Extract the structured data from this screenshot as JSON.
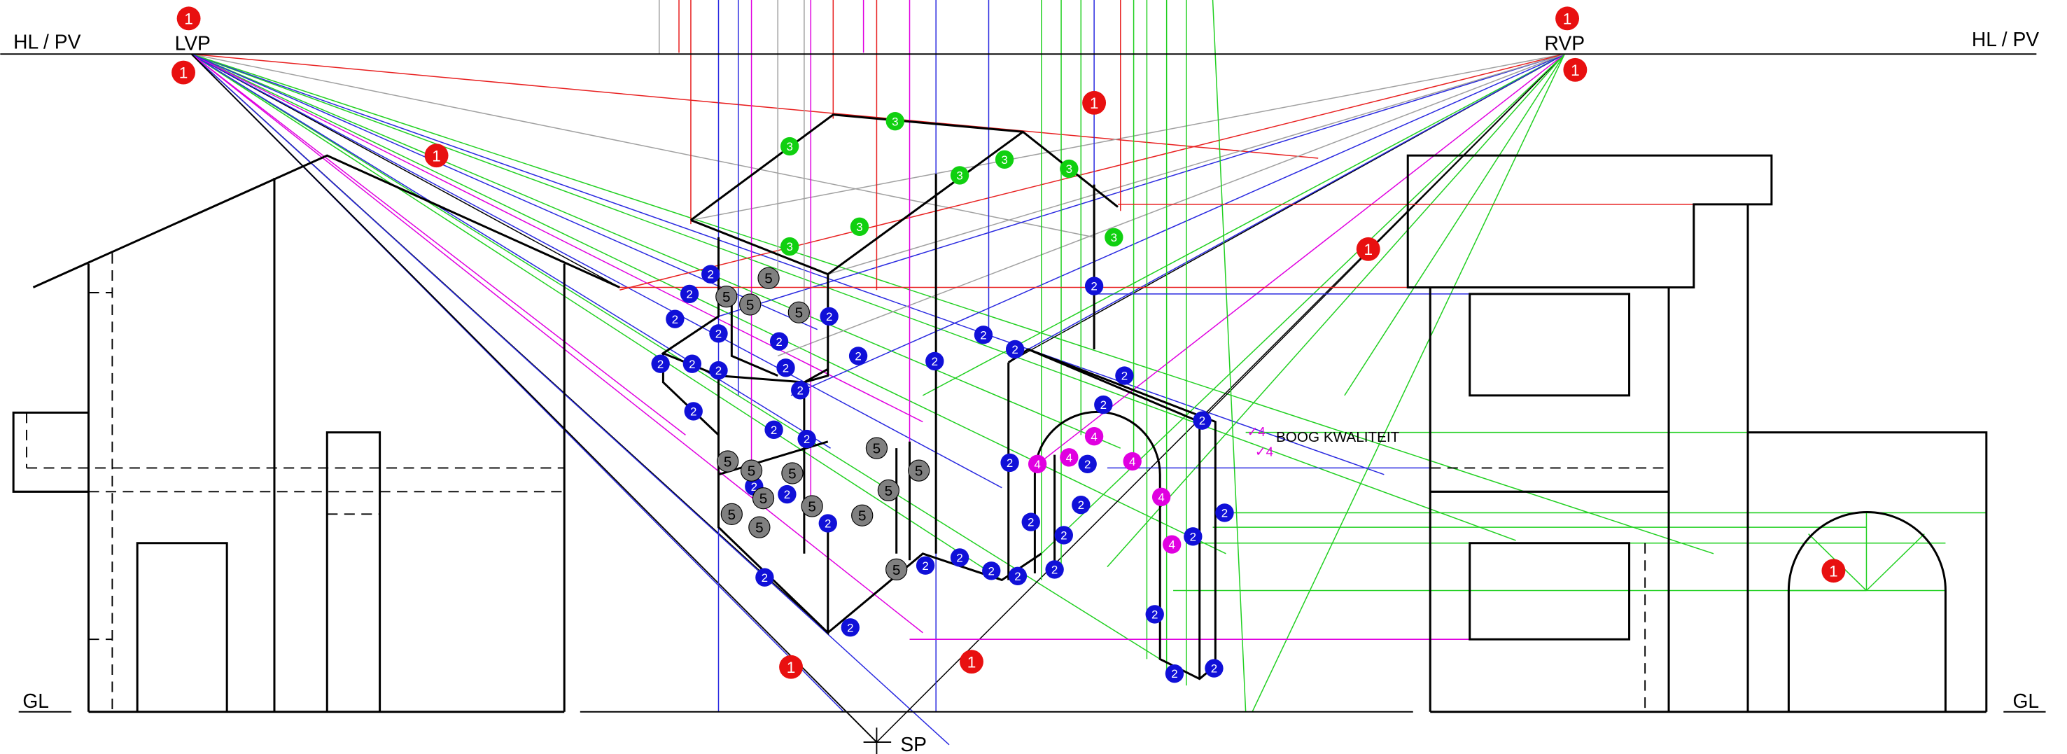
{
  "labels": {
    "hl_left": "HL / PV",
    "hl_right": "HL / PV",
    "lvp": "LVP",
    "rvp": "RVP",
    "gl_left": "GL",
    "gl_right": "GL",
    "sp": "SP",
    "note": "BOOG KWALITEIT",
    "check_1": "✓4",
    "check_2": "✓4"
  },
  "markers": {
    "red": [
      "1",
      "1",
      "1",
      "1",
      "1",
      "1",
      "1",
      "1",
      "1",
      "1"
    ],
    "green": [
      "3",
      "3",
      "3",
      "3",
      "3",
      "3",
      "3",
      "3"
    ],
    "blue": [
      "2",
      "2",
      "2",
      "2",
      "2",
      "2",
      "2",
      "2",
      "2",
      "2",
      "2",
      "2",
      "2",
      "2",
      "2",
      "2",
      "2",
      "2",
      "2",
      "2",
      "2",
      "2",
      "2",
      "2",
      "2",
      "2",
      "2",
      "2",
      "2",
      "2",
      "2",
      "2",
      "2",
      "2",
      "2",
      "2",
      "2",
      "2",
      "2",
      "2",
      "2",
      "2"
    ],
    "gray": [
      "5",
      "5",
      "5",
      "5",
      "5",
      "5",
      "5",
      "5",
      "5",
      "5",
      "5",
      "5",
      "5",
      "5",
      "5",
      "5"
    ],
    "magenta": [
      "4",
      "4",
      "4",
      "4",
      "4",
      "4"
    ]
  }
}
